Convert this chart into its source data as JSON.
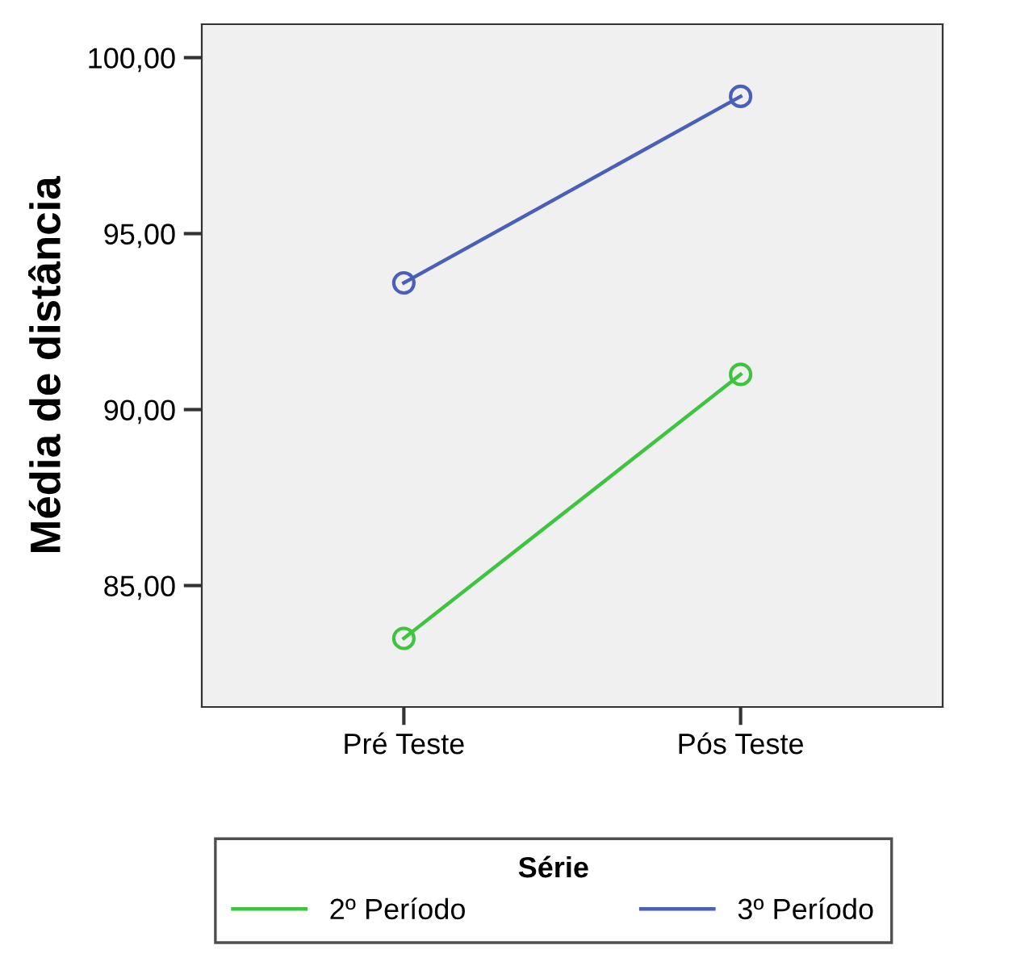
{
  "chart_data": {
    "type": "line",
    "ylabel": "Média de distância",
    "legend_title": "Série",
    "categories": [
      "Pré Teste",
      "Pós Teste"
    ],
    "series": [
      {
        "name": "2º Período",
        "color": "#3ec43e",
        "values": [
          83.5,
          91.0
        ]
      },
      {
        "name": "3º Período",
        "color": "#4a5fb8",
        "values": [
          93.6,
          98.9
        ]
      }
    ],
    "ylim": [
      81.55,
      100.95
    ],
    "yticks": [
      {
        "value": 85,
        "label": "85,00"
      },
      {
        "value": 90,
        "label": "90,00"
      },
      {
        "value": 95,
        "label": "95,00"
      },
      {
        "value": 100,
        "label": "100,00"
      }
    ],
    "grid": false,
    "legend": "bottom",
    "marker": "circle",
    "line_style": "solid"
  }
}
